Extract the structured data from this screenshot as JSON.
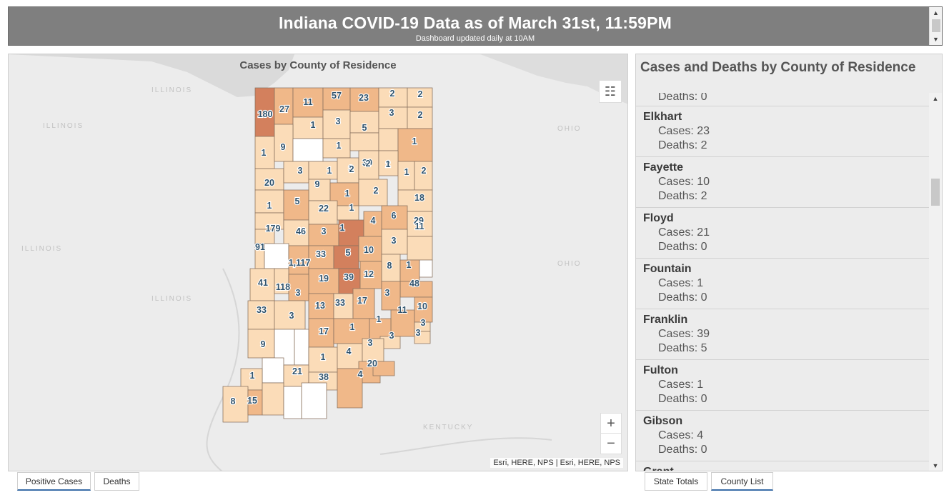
{
  "header": {
    "title": "Indiana COVID-19 Data as of March 31st, 11:59PM",
    "subtitle": "Dashboard updated daily at 10AM"
  },
  "map": {
    "title": "Cases by County of Residence",
    "attribution": "Esri, HERE, NPS | Esri, HERE, NPS",
    "zoom_in": "+",
    "zoom_out": "−",
    "legend_icon": "legend-list-icon",
    "regions": [
      "ILLINOIS",
      "ILLINOIS",
      "ILLINOIS",
      "ILLINOIS",
      "OHIO",
      "OHIO",
      "KENTUCKY"
    ],
    "colors": {
      "c0": "#ffffff",
      "c1": "#fbdcb8",
      "c2": "#f0b889",
      "c3": "#e39e72",
      "c4": "#d3805d",
      "border": "#8a7360"
    },
    "county_values": [
      "180",
      "27",
      "11",
      "57",
      "23",
      "2",
      "2",
      "1",
      "3",
      "5",
      "3",
      "2",
      "1",
      "9",
      "1",
      "3",
      "39",
      "2",
      "1",
      "3",
      "1",
      "2",
      "2",
      "1",
      "1",
      "2",
      "20",
      "9",
      "1",
      "2",
      "18",
      "1",
      "5",
      "22",
      "1",
      "6",
      "29",
      "179",
      "46",
      "3",
      "1",
      "4",
      "3",
      "11",
      "91",
      "1,117",
      "33",
      "5",
      "10",
      "8",
      "1",
      "41",
      "118",
      "19",
      "39",
      "12",
      "48",
      "3",
      "3",
      "33",
      "3",
      "13",
      "33",
      "17",
      "11",
      "10",
      "17",
      "1",
      "1",
      "3",
      "3",
      "3",
      "9",
      "1",
      "4",
      "3",
      "1",
      "21",
      "38",
      "4",
      "20",
      "8",
      "15"
    ]
  },
  "list": {
    "title": "Cases and Deaths by County of Residence",
    "partial_top": "Deaths: 0",
    "counties": [
      {
        "name": "Elkhart",
        "cases": "Cases: 23",
        "deaths": "Deaths: 2"
      },
      {
        "name": "Fayette",
        "cases": "Cases: 10",
        "deaths": "Deaths: 2"
      },
      {
        "name": "Floyd",
        "cases": "Cases: 21",
        "deaths": "Deaths: 0"
      },
      {
        "name": "Fountain",
        "cases": "Cases: 1",
        "deaths": "Deaths: 0"
      },
      {
        "name": "Franklin",
        "cases": "Cases: 39",
        "deaths": "Deaths: 5"
      },
      {
        "name": "Fulton",
        "cases": "Cases: 1",
        "deaths": "Deaths: 0"
      },
      {
        "name": "Gibson",
        "cases": "Cases: 4",
        "deaths": "Deaths: 0"
      }
    ],
    "partial_bottom": "Grant"
  },
  "tabs": {
    "left": [
      {
        "label": "Positive Cases",
        "active": true
      },
      {
        "label": "Deaths",
        "active": false
      }
    ],
    "right": [
      {
        "label": "State Totals",
        "active": false
      },
      {
        "label": "County List",
        "active": true
      }
    ]
  }
}
